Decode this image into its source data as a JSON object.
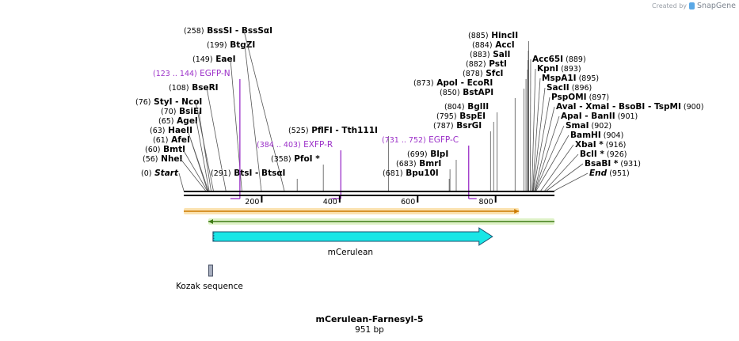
{
  "brand": {
    "created_by": "Created by",
    "name": "SnapGene",
    "logo": "snapgene-logo"
  },
  "plasmid": {
    "name": "mCerulean-Farnesyl-5",
    "length": "951 bp"
  },
  "axis": {
    "min": 0,
    "max": 951,
    "ticks": [
      "200",
      "400",
      "600",
      "800"
    ]
  },
  "left_sites": [
    {
      "pos": "(0)",
      "name": "Start",
      "bp": 0,
      "kind": "end"
    },
    {
      "pos": "(56)",
      "name": "NheI",
      "bp": 56
    },
    {
      "pos": "(60)",
      "name": "BmtI",
      "bp": 60
    },
    {
      "pos": "(61)",
      "name": "AfeI",
      "bp": 61
    },
    {
      "pos": "(63)",
      "name": "HaeII",
      "bp": 63
    },
    {
      "pos": "(65)",
      "name": "AgeI",
      "bp": 65
    },
    {
      "pos": "(70)",
      "name": "BsiEI",
      "bp": 70
    },
    {
      "pos": "(76)",
      "name": "StyI",
      "name2": "NcoI",
      "bp": 76
    },
    {
      "pos": "(108)",
      "name": "BseRI",
      "bp": 108
    },
    {
      "pos": "(149)",
      "name": "EaeI",
      "bp": 149
    },
    {
      "pos": "(199)",
      "name": "BtgZI",
      "bp": 199
    },
    {
      "pos": "(258)",
      "name": "BssSI",
      "name2": "BssSαI",
      "bp": 258
    }
  ],
  "middle_sites": [
    {
      "pos": "(291)",
      "name": "BtsI",
      "name2": "BtsαI",
      "bp": 291
    },
    {
      "pos": "(358)",
      "name": "PfoI *",
      "bp": 358
    },
    {
      "pos": "(525)",
      "name": "PflFI",
      "name2": "Tth111I",
      "bp": 525
    },
    {
      "pos": "(681)",
      "name": "Bpu10I",
      "bp": 681
    },
    {
      "pos": "(683)",
      "name": "BmrI",
      "bp": 683
    },
    {
      "pos": "(699)",
      "name": "BlpI",
      "bp": 699
    },
    {
      "pos": "(787)",
      "name": "BsrGI",
      "bp": 787
    },
    {
      "pos": "(795)",
      "name": "BspEI",
      "bp": 795
    },
    {
      "pos": "(804)",
      "name": "BglII",
      "bp": 804
    },
    {
      "pos": "(850)",
      "name": "BstAPI",
      "bp": 850
    },
    {
      "pos": "(873)",
      "name": "ApoI",
      "name2": "EcoRI",
      "bp": 873
    },
    {
      "pos": "(878)",
      "name": "SfcI",
      "bp": 878
    },
    {
      "pos": "(882)",
      "name": "PstI",
      "bp": 882
    },
    {
      "pos": "(883)",
      "name": "SalI",
      "bp": 883
    },
    {
      "pos": "(884)",
      "name": "AccI",
      "bp": 884
    },
    {
      "pos": "(885)",
      "name": "HincII",
      "bp": 885
    }
  ],
  "right_sites": [
    {
      "name": "Acc65I",
      "pos": "(889)",
      "bp": 889
    },
    {
      "name": "KpnI",
      "pos": "(893)",
      "bp": 893
    },
    {
      "name": "MspA1I",
      "pos": "(895)",
      "bp": 895
    },
    {
      "name": "SacII",
      "pos": "(896)",
      "bp": 896
    },
    {
      "name": "PspOMI",
      "pos": "(897)",
      "bp": 897
    },
    {
      "name": "AvaI",
      "name2": "XmaI",
      "name3": "BsoBI",
      "name4": "TspMI",
      "pos": "(900)",
      "bp": 900
    },
    {
      "name": "ApaI",
      "name2": "BanII",
      "pos": "(901)",
      "bp": 901
    },
    {
      "name": "SmaI",
      "pos": "(902)",
      "bp": 902
    },
    {
      "name": "BamHI",
      "pos": "(904)",
      "bp": 904
    },
    {
      "name": "XbaI *",
      "pos": "(916)",
      "bp": 916
    },
    {
      "name": "BclI *",
      "pos": "(926)",
      "bp": 926
    },
    {
      "name": "BsaBI *",
      "pos": "(931)",
      "bp": 931
    },
    {
      "name": "End",
      "pos": "(951)",
      "bp": 951,
      "kind": "end"
    }
  ],
  "primers": [
    {
      "range": "(123 .. 144)",
      "name": "EGFP-N",
      "bp": 144
    },
    {
      "range": "(384 .. 403)",
      "name": "EXFP-R",
      "bp": 403
    },
    {
      "range": "(731 .. 752)",
      "name": "EGFP-C",
      "bp": 731
    }
  ],
  "features": {
    "cds_label": "mCerulean",
    "kozak_label": "Kozak sequence",
    "orange_bar": {
      "start": 0,
      "end": 860
    },
    "green_bar": {
      "start": 63,
      "end": 951
    },
    "cds": {
      "start": 75,
      "end": 792
    },
    "kozak": {
      "start": 70,
      "end": 80
    },
    "colors": {
      "orange": "#f5a623",
      "green": "#8bd24a",
      "cyan": "#19e6e6",
      "purple": "#9b30c8"
    }
  }
}
